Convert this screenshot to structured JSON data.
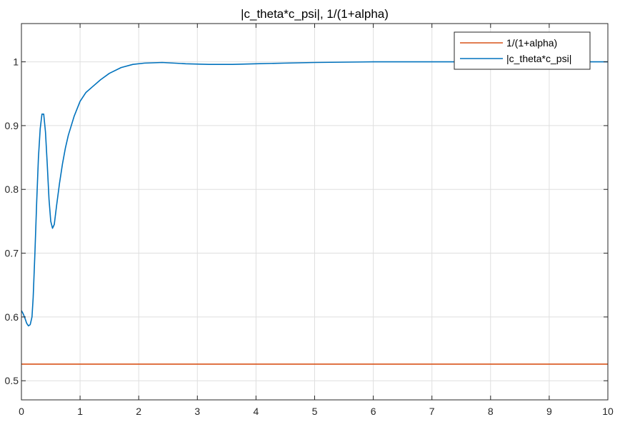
{
  "chart_data": {
    "type": "line",
    "title": "|c_theta*c_psi|, 1/(1+alpha)",
    "xlabel": "",
    "ylabel": "",
    "xlim": [
      0,
      10
    ],
    "ylim": [
      0.47,
      1.06
    ],
    "xticks": [
      0,
      1,
      2,
      3,
      4,
      5,
      6,
      7,
      8,
      9,
      10
    ],
    "xtick_labels": [
      "0",
      "1",
      "2",
      "3",
      "4",
      "5",
      "6",
      "7",
      "8",
      "9",
      "10"
    ],
    "yticks": [
      0.5,
      0.6,
      0.7,
      0.8,
      0.9,
      1.0
    ],
    "ytick_labels": [
      "0.5",
      "0.6",
      "0.7",
      "0.8",
      "0.9",
      "1"
    ],
    "grid": true,
    "legend_position": "top-right",
    "series": [
      {
        "name": "1/(1+alpha)",
        "color": "#D95319",
        "x": [
          0,
          10
        ],
        "y": [
          0.526,
          0.526
        ]
      },
      {
        "name": "|c_theta*c_psi|",
        "color": "#0072BD",
        "x": [
          0,
          0.03,
          0.06,
          0.09,
          0.12,
          0.15,
          0.18,
          0.2,
          0.23,
          0.26,
          0.29,
          0.32,
          0.35,
          0.38,
          0.41,
          0.44,
          0.47,
          0.5,
          0.53,
          0.56,
          0.6,
          0.65,
          0.7,
          0.75,
          0.8,
          0.9,
          1.0,
          1.1,
          1.2,
          1.35,
          1.5,
          1.7,
          1.9,
          2.1,
          2.4,
          2.8,
          3.2,
          3.6,
          4.0,
          4.5,
          5.0,
          6.0,
          7.0,
          8.0,
          9.0,
          10.0
        ],
        "y": [
          0.61,
          0.605,
          0.598,
          0.59,
          0.586,
          0.588,
          0.6,
          0.63,
          0.7,
          0.78,
          0.85,
          0.895,
          0.918,
          0.918,
          0.89,
          0.84,
          0.785,
          0.75,
          0.739,
          0.745,
          0.775,
          0.81,
          0.84,
          0.865,
          0.885,
          0.915,
          0.938,
          0.952,
          0.96,
          0.972,
          0.982,
          0.991,
          0.996,
          0.998,
          0.999,
          0.997,
          0.996,
          0.996,
          0.997,
          0.998,
          0.999,
          1.0,
          1.0,
          1.0,
          1.0,
          1.0
        ]
      }
    ]
  }
}
